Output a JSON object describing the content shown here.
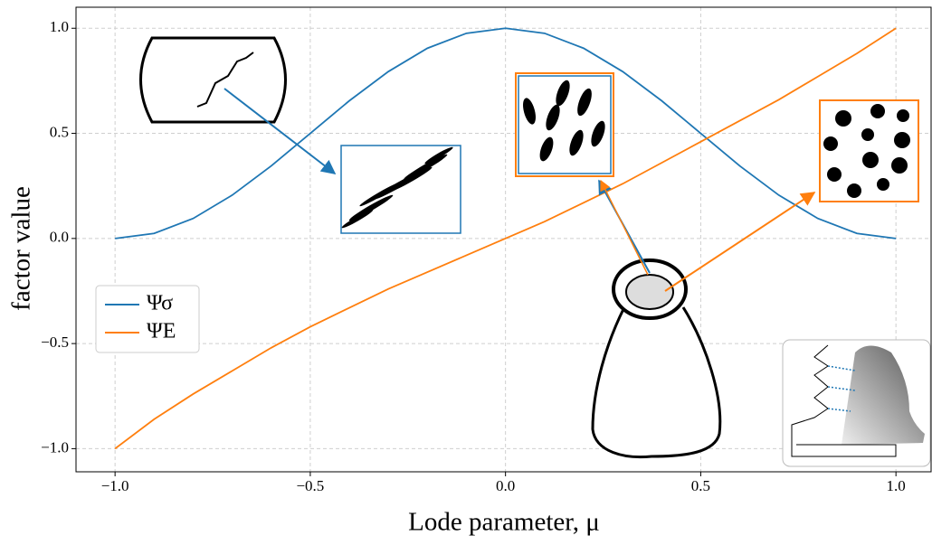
{
  "chart_data": {
    "type": "line",
    "xlabel": "Lode parameter, μ",
    "ylabel": "factor value",
    "x": [
      -1.0,
      -0.9,
      -0.8,
      -0.7,
      -0.6,
      -0.5,
      -0.4,
      -0.3,
      -0.2,
      -0.1,
      0.0,
      0.1,
      0.2,
      0.3,
      0.4,
      0.5,
      0.6,
      0.7,
      0.8,
      0.9,
      1.0
    ],
    "series": [
      {
        "name": "Ψσ",
        "color": "#1f77b4",
        "values": [
          0.0,
          0.024,
          0.095,
          0.206,
          0.345,
          0.5,
          0.655,
          0.794,
          0.905,
          0.976,
          1.0,
          0.976,
          0.905,
          0.794,
          0.655,
          0.5,
          0.345,
          0.206,
          0.095,
          0.024,
          0.0
        ]
      },
      {
        "name": "ΨE",
        "color": "#ff7f0e",
        "values": [
          -1.0,
          -0.86,
          -0.74,
          -0.63,
          -0.52,
          -0.42,
          -0.33,
          -0.24,
          -0.16,
          -0.08,
          0.0,
          0.08,
          0.17,
          0.26,
          0.36,
          0.46,
          0.56,
          0.66,
          0.77,
          0.88,
          1.0
        ]
      }
    ],
    "xlim": [
      -1.1,
      1.09
    ],
    "ylim": [
      -1.11,
      1.1
    ],
    "xticks": [
      {
        "value": -1.0,
        "label": "−1.0"
      },
      {
        "value": -0.5,
        "label": "−0.5"
      },
      {
        "value": 0.0,
        "label": "0.0"
      },
      {
        "value": 0.5,
        "label": "0.5"
      },
      {
        "value": 1.0,
        "label": "1.0"
      }
    ],
    "yticks": [
      {
        "value": -1.0,
        "label": "−1.0"
      },
      {
        "value": -0.5,
        "label": "−0.5"
      },
      {
        "value": 0.0,
        "label": "0.0"
      },
      {
        "value": 0.5,
        "label": "0.5"
      },
      {
        "value": 1.0,
        "label": "1.0"
      }
    ],
    "grid": true,
    "legend": "center left"
  }
}
